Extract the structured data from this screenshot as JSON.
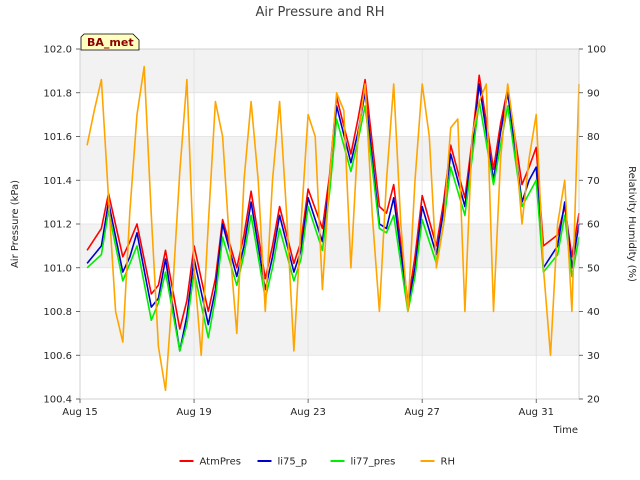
{
  "chart_data": {
    "type": "line",
    "title": "Air Pressure and RH",
    "site_label": "BA_met",
    "xlabel": "Time",
    "ylabel_left": "Air Pressure (kPa)",
    "ylabel_right": "Relativity Humidity (%)",
    "x_range": [
      "2023-08-15",
      "2023-09-01T12:00"
    ],
    "x_ticks": [
      {
        "date": "2023-08-15",
        "label": "Aug 15"
      },
      {
        "date": "2023-08-19",
        "label": "Aug 19"
      },
      {
        "date": "2023-08-23",
        "label": "Aug 23"
      },
      {
        "date": "2023-08-27",
        "label": "Aug 27"
      },
      {
        "date": "2023-08-31",
        "label": "Aug 31"
      }
    ],
    "ylim_left": [
      100.4,
      102.0
    ],
    "yticks_left": [
      "100.4",
      "100.6",
      "100.8",
      "101.0",
      "101.2",
      "101.4",
      "101.6",
      "101.8",
      "102.0"
    ],
    "ylim_right": [
      20,
      100
    ],
    "yticks_right": [
      "20",
      "30",
      "40",
      "50",
      "60",
      "70",
      "80",
      "90",
      "100"
    ],
    "grid": true,
    "legend_position": "bottom",
    "series": [
      {
        "name": "AtmPres",
        "color": "#ff0000",
        "axis": "left",
        "points": [
          [
            "2023-08-15T06:00",
            101.08
          ],
          [
            "2023-08-15T18:00",
            101.18
          ],
          [
            "2023-08-16T00:00",
            101.34
          ],
          [
            "2023-08-16T12:00",
            101.05
          ],
          [
            "2023-08-16T18:00",
            101.12
          ],
          [
            "2023-08-17T00:00",
            101.2
          ],
          [
            "2023-08-17T12:00",
            100.88
          ],
          [
            "2023-08-17T18:00",
            100.92
          ],
          [
            "2023-08-18T00:00",
            101.08
          ],
          [
            "2023-08-18T12:00",
            100.72
          ],
          [
            "2023-08-18T18:00",
            100.85
          ],
          [
            "2023-08-19T00:00",
            101.1
          ],
          [
            "2023-08-19T12:00",
            100.8
          ],
          [
            "2023-08-19T18:00",
            100.95
          ],
          [
            "2023-08-20T00:00",
            101.22
          ],
          [
            "2023-08-20T12:00",
            101.0
          ],
          [
            "2023-08-20T18:00",
            101.15
          ],
          [
            "2023-08-21T00:00",
            101.35
          ],
          [
            "2023-08-21T12:00",
            100.95
          ],
          [
            "2023-08-21T18:00",
            101.1
          ],
          [
            "2023-08-22T00:00",
            101.28
          ],
          [
            "2023-08-22T12:00",
            101.02
          ],
          [
            "2023-08-22T18:00",
            101.12
          ],
          [
            "2023-08-23T00:00",
            101.36
          ],
          [
            "2023-08-23T12:00",
            101.18
          ],
          [
            "2023-08-23T18:00",
            101.42
          ],
          [
            "2023-08-24T00:00",
            101.78
          ],
          [
            "2023-08-24T12:00",
            101.52
          ],
          [
            "2023-08-24T18:00",
            101.68
          ],
          [
            "2023-08-25T00:00",
            101.86
          ],
          [
            "2023-08-25T12:00",
            101.28
          ],
          [
            "2023-08-25T18:00",
            101.25
          ],
          [
            "2023-08-26T00:00",
            101.38
          ],
          [
            "2023-08-26T12:00",
            100.84
          ],
          [
            "2023-08-26T18:00",
            101.05
          ],
          [
            "2023-08-27T00:00",
            101.33
          ],
          [
            "2023-08-27T12:00",
            101.1
          ],
          [
            "2023-08-27T18:00",
            101.3
          ],
          [
            "2023-08-28T00:00",
            101.56
          ],
          [
            "2023-08-28T12:00",
            101.32
          ],
          [
            "2023-08-28T18:00",
            101.58
          ],
          [
            "2023-08-29T00:00",
            101.88
          ],
          [
            "2023-08-29T12:00",
            101.45
          ],
          [
            "2023-08-29T18:00",
            101.66
          ],
          [
            "2023-08-30T00:00",
            101.82
          ],
          [
            "2023-08-30T12:00",
            101.38
          ],
          [
            "2023-08-30T18:00",
            101.46
          ],
          [
            "2023-08-31T00:00",
            101.55
          ],
          [
            "2023-08-31T06:00",
            101.1
          ],
          [
            "2023-08-31T18:00",
            101.15
          ],
          [
            "2023-09-01T00:00",
            101.28
          ],
          [
            "2023-09-01T06:00",
            101.05
          ],
          [
            "2023-09-01T12:00",
            101.25
          ]
        ]
      },
      {
        "name": "li75_p",
        "color": "#0000cc",
        "axis": "left",
        "points": [
          [
            "2023-08-15T06:00",
            101.02
          ],
          [
            "2023-08-15T18:00",
            101.1
          ],
          [
            "2023-08-16T00:00",
            101.3
          ],
          [
            "2023-08-16T12:00",
            100.98
          ],
          [
            "2023-08-16T18:00",
            101.05
          ],
          [
            "2023-08-17T00:00",
            101.16
          ],
          [
            "2023-08-17T12:00",
            100.82
          ],
          [
            "2023-08-17T18:00",
            100.86
          ],
          [
            "2023-08-18T00:00",
            101.04
          ],
          [
            "2023-08-18T12:00",
            100.62
          ],
          [
            "2023-08-18T18:00",
            100.78
          ],
          [
            "2023-08-19T00:00",
            101.04
          ],
          [
            "2023-08-19T12:00",
            100.74
          ],
          [
            "2023-08-19T18:00",
            100.9
          ],
          [
            "2023-08-20T00:00",
            101.2
          ],
          [
            "2023-08-20T12:00",
            100.96
          ],
          [
            "2023-08-20T18:00",
            101.1
          ],
          [
            "2023-08-21T00:00",
            101.3
          ],
          [
            "2023-08-21T12:00",
            100.9
          ],
          [
            "2023-08-21T18:00",
            101.05
          ],
          [
            "2023-08-22T00:00",
            101.24
          ],
          [
            "2023-08-22T12:00",
            100.98
          ],
          [
            "2023-08-22T18:00",
            101.08
          ],
          [
            "2023-08-23T00:00",
            101.32
          ],
          [
            "2023-08-23T12:00",
            101.12
          ],
          [
            "2023-08-23T18:00",
            101.38
          ],
          [
            "2023-08-24T00:00",
            101.74
          ],
          [
            "2023-08-24T12:00",
            101.48
          ],
          [
            "2023-08-24T18:00",
            101.62
          ],
          [
            "2023-08-25T00:00",
            101.8
          ],
          [
            "2023-08-25T12:00",
            101.2
          ],
          [
            "2023-08-25T18:00",
            101.18
          ],
          [
            "2023-08-26T00:00",
            101.32
          ],
          [
            "2023-08-26T12:00",
            100.82
          ],
          [
            "2023-08-26T18:00",
            101.0
          ],
          [
            "2023-08-27T00:00",
            101.28
          ],
          [
            "2023-08-27T12:00",
            101.06
          ],
          [
            "2023-08-27T18:00",
            101.26
          ],
          [
            "2023-08-28T00:00",
            101.52
          ],
          [
            "2023-08-28T12:00",
            101.28
          ],
          [
            "2023-08-28T18:00",
            101.54
          ],
          [
            "2023-08-29T00:00",
            101.84
          ],
          [
            "2023-08-29T12:00",
            101.4
          ],
          [
            "2023-08-29T18:00",
            101.62
          ],
          [
            "2023-08-30T00:00",
            101.8
          ],
          [
            "2023-08-30T12:00",
            101.3
          ],
          [
            "2023-08-30T18:00",
            101.4
          ],
          [
            "2023-08-31T00:00",
            101.46
          ],
          [
            "2023-08-31T06:00",
            101.0
          ],
          [
            "2023-08-31T18:00",
            101.1
          ],
          [
            "2023-09-01T00:00",
            101.3
          ],
          [
            "2023-09-01T06:00",
            101.0
          ],
          [
            "2023-09-01T12:00",
            101.2
          ]
        ]
      },
      {
        "name": "li77_pres",
        "color": "#00ee00",
        "axis": "left",
        "points": [
          [
            "2023-08-15T06:00",
            101.0
          ],
          [
            "2023-08-15T18:00",
            101.06
          ],
          [
            "2023-08-16T00:00",
            101.26
          ],
          [
            "2023-08-16T12:00",
            100.94
          ],
          [
            "2023-08-16T18:00",
            101.02
          ],
          [
            "2023-08-17T00:00",
            101.1
          ],
          [
            "2023-08-17T12:00",
            100.76
          ],
          [
            "2023-08-17T18:00",
            100.84
          ],
          [
            "2023-08-18T00:00",
            100.98
          ],
          [
            "2023-08-18T12:00",
            100.62
          ],
          [
            "2023-08-18T18:00",
            100.74
          ],
          [
            "2023-08-19T00:00",
            100.98
          ],
          [
            "2023-08-19T12:00",
            100.68
          ],
          [
            "2023-08-19T18:00",
            100.86
          ],
          [
            "2023-08-20T00:00",
            101.14
          ],
          [
            "2023-08-20T12:00",
            100.92
          ],
          [
            "2023-08-20T18:00",
            101.06
          ],
          [
            "2023-08-21T00:00",
            101.24
          ],
          [
            "2023-08-21T12:00",
            100.86
          ],
          [
            "2023-08-21T18:00",
            101.0
          ],
          [
            "2023-08-22T00:00",
            101.18
          ],
          [
            "2023-08-22T12:00",
            100.94
          ],
          [
            "2023-08-22T18:00",
            101.04
          ],
          [
            "2023-08-23T00:00",
            101.28
          ],
          [
            "2023-08-23T12:00",
            101.08
          ],
          [
            "2023-08-23T18:00",
            101.34
          ],
          [
            "2023-08-24T00:00",
            101.68
          ],
          [
            "2023-08-24T12:00",
            101.44
          ],
          [
            "2023-08-24T18:00",
            101.58
          ],
          [
            "2023-08-25T00:00",
            101.74
          ],
          [
            "2023-08-25T12:00",
            101.18
          ],
          [
            "2023-08-25T18:00",
            101.16
          ],
          [
            "2023-08-26T00:00",
            101.24
          ],
          [
            "2023-08-26T12:00",
            100.8
          ],
          [
            "2023-08-26T18:00",
            100.96
          ],
          [
            "2023-08-27T00:00",
            101.22
          ],
          [
            "2023-08-27T12:00",
            101.02
          ],
          [
            "2023-08-27T18:00",
            101.2
          ],
          [
            "2023-08-28T00:00",
            101.46
          ],
          [
            "2023-08-28T12:00",
            101.24
          ],
          [
            "2023-08-28T18:00",
            101.5
          ],
          [
            "2023-08-29T00:00",
            101.76
          ],
          [
            "2023-08-29T12:00",
            101.38
          ],
          [
            "2023-08-29T18:00",
            101.56
          ],
          [
            "2023-08-30T00:00",
            101.74
          ],
          [
            "2023-08-30T12:00",
            101.28
          ],
          [
            "2023-08-30T18:00",
            101.34
          ],
          [
            "2023-08-31T00:00",
            101.4
          ],
          [
            "2023-08-31T06:00",
            100.98
          ],
          [
            "2023-08-31T18:00",
            101.06
          ],
          [
            "2023-09-01T00:00",
            101.24
          ],
          [
            "2023-09-01T06:00",
            100.96
          ],
          [
            "2023-09-01T12:00",
            101.14
          ]
        ]
      },
      {
        "name": "RH",
        "color": "#ffa500",
        "axis": "right",
        "points": [
          [
            "2023-08-15T06:00",
            78
          ],
          [
            "2023-08-15T12:00",
            86
          ],
          [
            "2023-08-15T18:00",
            93
          ],
          [
            "2023-08-16T00:00",
            66
          ],
          [
            "2023-08-16T06:00",
            40
          ],
          [
            "2023-08-16T12:00",
            33
          ],
          [
            "2023-08-16T18:00",
            63
          ],
          [
            "2023-08-17T00:00",
            85
          ],
          [
            "2023-08-17T06:00",
            96
          ],
          [
            "2023-08-17T12:00",
            62
          ],
          [
            "2023-08-17T18:00",
            32
          ],
          [
            "2023-08-18T00:00",
            22
          ],
          [
            "2023-08-18T06:00",
            45
          ],
          [
            "2023-08-18T12:00",
            72
          ],
          [
            "2023-08-18T18:00",
            93
          ],
          [
            "2023-08-19T00:00",
            50
          ],
          [
            "2023-08-19T06:00",
            30
          ],
          [
            "2023-08-19T12:00",
            60
          ],
          [
            "2023-08-19T18:00",
            88
          ],
          [
            "2023-08-20T00:00",
            80
          ],
          [
            "2023-08-20T06:00",
            55
          ],
          [
            "2023-08-20T12:00",
            35
          ],
          [
            "2023-08-20T18:00",
            70
          ],
          [
            "2023-08-21T00:00",
            88
          ],
          [
            "2023-08-21T06:00",
            70
          ],
          [
            "2023-08-21T12:00",
            40
          ],
          [
            "2023-08-21T18:00",
            70
          ],
          [
            "2023-08-22T00:00",
            88
          ],
          [
            "2023-08-22T06:00",
            62
          ],
          [
            "2023-08-22T12:00",
            31
          ],
          [
            "2023-08-22T18:00",
            60
          ],
          [
            "2023-08-23T00:00",
            85
          ],
          [
            "2023-08-23T06:00",
            80
          ],
          [
            "2023-08-23T12:00",
            45
          ],
          [
            "2023-08-23T18:00",
            70
          ],
          [
            "2023-08-24T00:00",
            90
          ],
          [
            "2023-08-24T06:00",
            86
          ],
          [
            "2023-08-24T12:00",
            50
          ],
          [
            "2023-08-24T18:00",
            80
          ],
          [
            "2023-08-25T00:00",
            92
          ],
          [
            "2023-08-25T06:00",
            62
          ],
          [
            "2023-08-25T12:00",
            40
          ],
          [
            "2023-08-25T18:00",
            70
          ],
          [
            "2023-08-26T00:00",
            92
          ],
          [
            "2023-08-26T06:00",
            60
          ],
          [
            "2023-08-26T12:00",
            40
          ],
          [
            "2023-08-26T18:00",
            70
          ],
          [
            "2023-08-27T00:00",
            92
          ],
          [
            "2023-08-27T06:00",
            80
          ],
          [
            "2023-08-27T12:00",
            50
          ],
          [
            "2023-08-27T18:00",
            60
          ],
          [
            "2023-08-28T00:00",
            82
          ],
          [
            "2023-08-28T06:00",
            84
          ],
          [
            "2023-08-28T12:00",
            40
          ],
          [
            "2023-08-28T18:00",
            80
          ],
          [
            "2023-08-29T00:00",
            88
          ],
          [
            "2023-08-29T06:00",
            92
          ],
          [
            "2023-08-29T12:00",
            40
          ],
          [
            "2023-08-29T18:00",
            75
          ],
          [
            "2023-08-30T00:00",
            92
          ],
          [
            "2023-08-30T06:00",
            80
          ],
          [
            "2023-08-30T12:00",
            60
          ],
          [
            "2023-08-30T18:00",
            75
          ],
          [
            "2023-08-31T00:00",
            85
          ],
          [
            "2023-08-31T06:00",
            50
          ],
          [
            "2023-08-31T12:00",
            30
          ],
          [
            "2023-08-31T18:00",
            60
          ],
          [
            "2023-09-01T00:00",
            70
          ],
          [
            "2023-09-01T06:00",
            40
          ],
          [
            "2023-09-01T12:00",
            92
          ]
        ]
      }
    ]
  }
}
